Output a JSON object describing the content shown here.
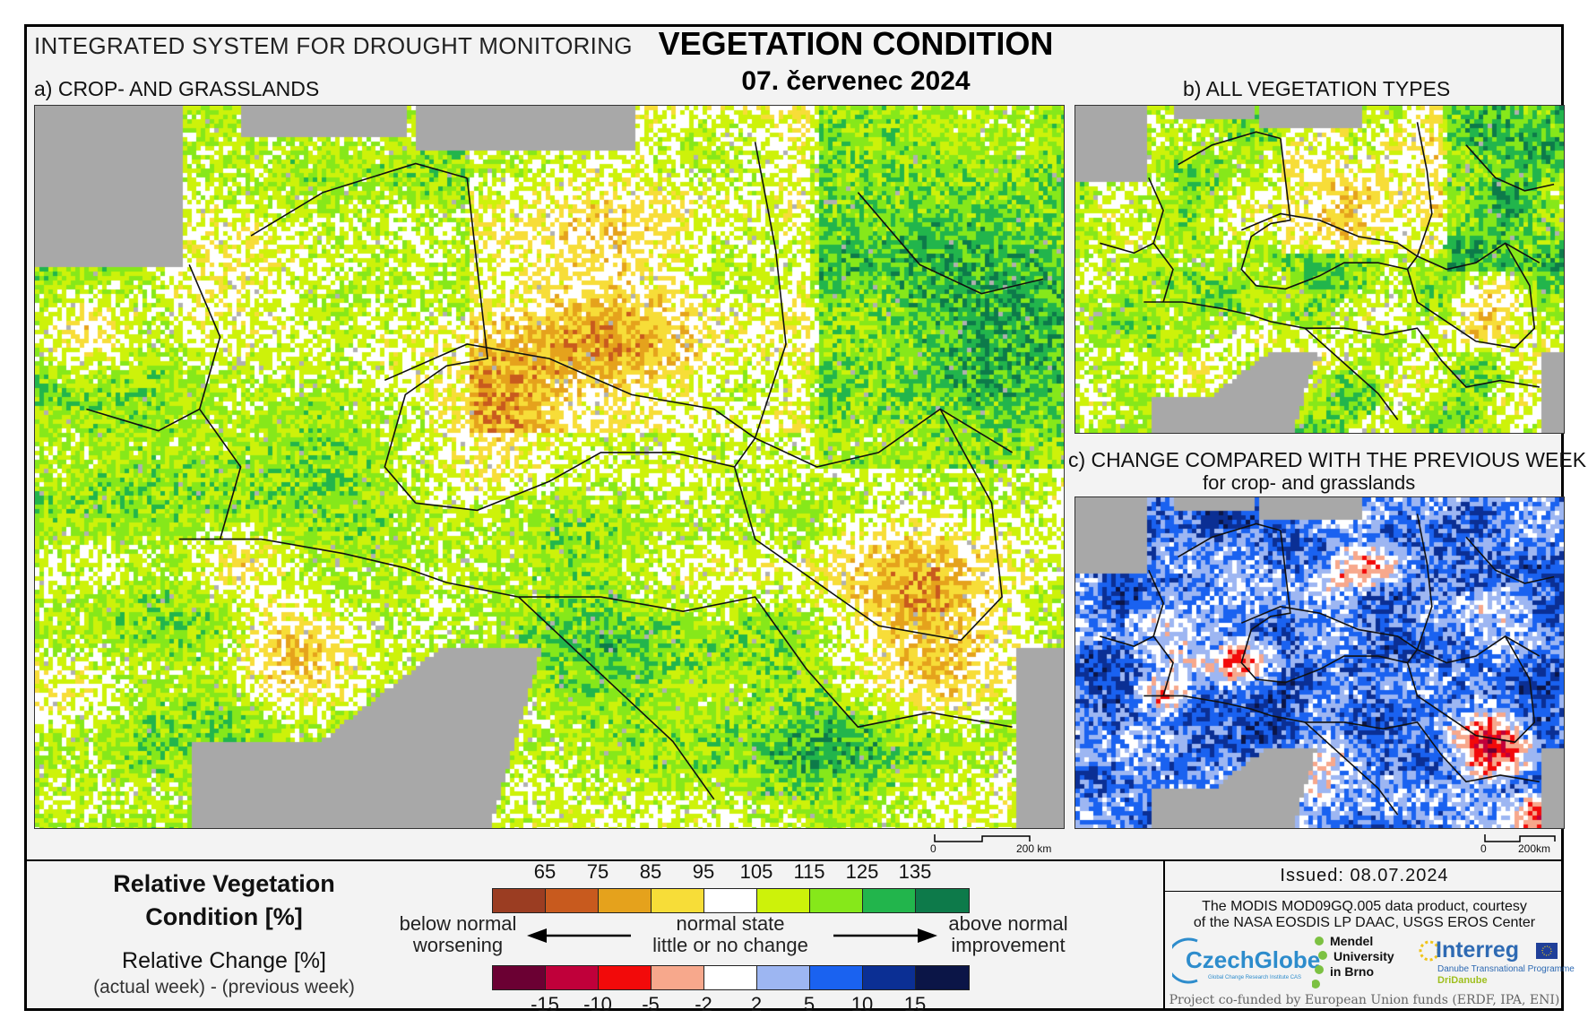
{
  "header": {
    "system_name": "INTEGRATED SYSTEM FOR DROUGHT MONITORING",
    "title": "VEGETATION CONDITION",
    "date": "07. červenec 2024"
  },
  "panels": {
    "a_label": "a) CROP- AND GRASSLANDS",
    "b_label": "b) ALL VEGETATION TYPES",
    "c_label": "c) CHANGE COMPARED WITH THE PREVIOUS WEEK",
    "c_sublabel": "for crop- and grasslands",
    "scale_a": {
      "zero": "0",
      "dist": "200 km"
    },
    "scale_c": {
      "zero": "0",
      "dist": "200km"
    }
  },
  "legend": {
    "title_line1": "Relative Vegetation",
    "title_line2": "Condition [%]",
    "change_title": "Relative Change [%]",
    "change_sub": "(actual week) - (previous week)",
    "condition_ticks": [
      "65",
      "75",
      "85",
      "95",
      "105",
      "115",
      "125",
      "135"
    ],
    "condition_colors": [
      "#9b3d22",
      "#c85a1e",
      "#e5a21c",
      "#f7dd38",
      "#ffffff",
      "#cdf20a",
      "#86e81a",
      "#22b54c",
      "#0d7a4a"
    ],
    "change_ticks": [
      "-15",
      "-10",
      "-5",
      "-2",
      "2",
      "5",
      "10",
      "15"
    ],
    "change_colors": [
      "#6b0033",
      "#c0003a",
      "#f20a0a",
      "#f7a88c",
      "#ffffff",
      "#9db6f2",
      "#1a62f0",
      "#0b2f94",
      "#0b1547"
    ],
    "below_normal": "below normal",
    "worsening": "worsening",
    "normal_state": "normal state",
    "no_change": "little or no change",
    "above_normal": "above normal",
    "improvement": "improvement"
  },
  "credits": {
    "issued": "Issued: 08.07.2024",
    "credit_line1": "The MODIS MOD09GQ.005 data product, courtesy",
    "credit_line2": "of the NASA EOSDIS LP DAAC, USGS EROS Center",
    "czechglobe": "CzechGlobe",
    "czechglobe_sub": "Global Change Research Institute CAS",
    "mendel_line1": "Mendel",
    "mendel_line2": "University",
    "mendel_line3": "in Brno",
    "interreg": "Interreg",
    "interreg_sub": "Danube Transnational Programme",
    "dridanube": "DriDanube",
    "cofunded": "Project co-funded by European Union funds (ERDF, IPA, ENI)"
  }
}
